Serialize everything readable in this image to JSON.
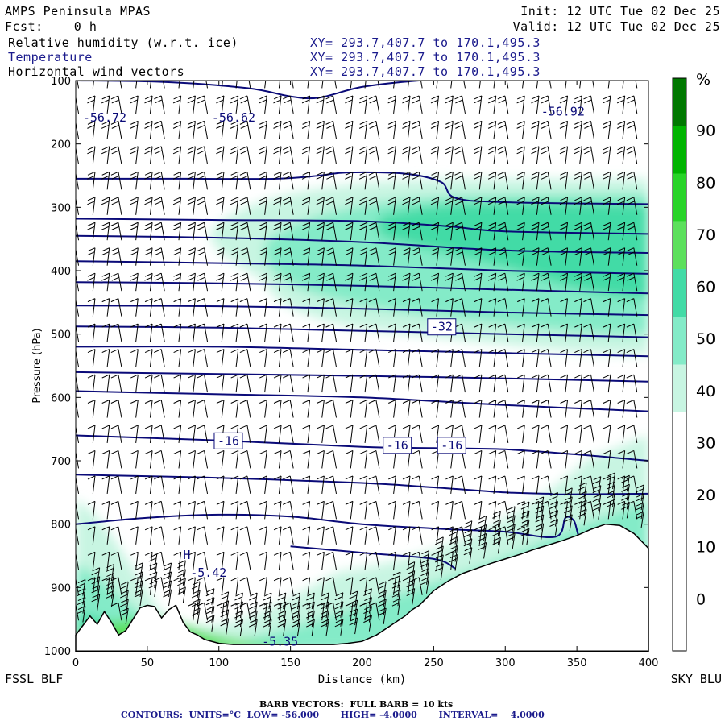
{
  "header": {
    "model": "AMPS Peninsula MPAS",
    "forecast": "Fcst:    0 h",
    "init": "Init: 12 UTC Tue 02 Dec 25",
    "valid": "Valid: 12 UTC Tue 02 Dec 25",
    "fields": [
      {
        "name": "Relative humidity (w.r.t. ice)",
        "xy": "XY= 293.7,407.7 to 170.1,495.3"
      },
      {
        "name": "Temperature",
        "xy": "XY= 293.7,407.7 to 170.1,495.3"
      },
      {
        "name": "Horizontal wind vectors",
        "xy": "XY= 293.7,407.7 to 170.1,495.3"
      }
    ]
  },
  "footer": {
    "barb_line": "BARB VECTORS:  FULL BARB = 10 kts",
    "contour_line": "CONTOURS:  UNITS=°C  LOW= -56.000       HIGH= -4.0000       INTERVAL=    4.0000"
  },
  "colors": {
    "contour": "#0a0a78",
    "terrain": "#000000",
    "barb": "#000000",
    "rh_levels": [
      "#ffffff",
      "#ffffff",
      "#ffffff",
      "#ffffff",
      "#ffffff",
      "#c8f5e2",
      "#84ebc8",
      "#42dba6",
      "#5ce05c",
      "#28d428",
      "#00b400",
      "#007800"
    ]
  },
  "chart_data": {
    "type": "cross-section",
    "xlabel": "Distance (km)",
    "ylabel": "Pressure (hPa)",
    "x_ticks": [
      0,
      50,
      100,
      150,
      200,
      250,
      300,
      350,
      400
    ],
    "y_ticks": [
      100,
      200,
      300,
      400,
      500,
      600,
      700,
      800,
      900,
      1000
    ],
    "xlim": [
      0,
      400
    ],
    "ylim": [
      1000,
      100
    ],
    "left_end_label": "FSSL_BLF",
    "right_end_label": "SKY_BLU",
    "colorbar": {
      "unit": "%",
      "tick_labels": [
        "90",
        "80",
        "70",
        "60",
        "50",
        "40",
        "30",
        "20",
        "10",
        "0"
      ],
      "tick_values": [
        90,
        80,
        70,
        60,
        50,
        40,
        30,
        20,
        10,
        0
      ],
      "top": 100,
      "bottom": -10
    },
    "contour_labels": [
      {
        "text": "-56.72",
        "x": 5,
        "p": 165,
        "boxed": false
      },
      {
        "text": "-56.62",
        "x": 95,
        "p": 165,
        "boxed": false
      },
      {
        "text": "-56.92",
        "x": 325,
        "p": 155,
        "boxed": false
      },
      {
        "text": "-32",
        "x": 248,
        "p": 495,
        "boxed": true
      },
      {
        "text": "-16",
        "x": 99,
        "p": 675,
        "boxed": true
      },
      {
        "text": "-16",
        "x": 217,
        "p": 682,
        "boxed": true
      },
      {
        "text": "-16",
        "x": 255,
        "p": 682,
        "boxed": true
      },
      {
        "text": "-5.42",
        "x": 80,
        "p": 883,
        "boxed": false
      },
      {
        "text": "H",
        "x": 75,
        "p": 855,
        "boxed": false
      },
      {
        "text": "-5.35",
        "x": 130,
        "p": 992,
        "boxed": false
      }
    ],
    "terrain": {
      "x": [
        0,
        5,
        10,
        15,
        20,
        25,
        30,
        35,
        40,
        45,
        50,
        55,
        60,
        65,
        70,
        75,
        80,
        85,
        90,
        100,
        110,
        120,
        130,
        140,
        150,
        160,
        170,
        180,
        190,
        200,
        210,
        220,
        230,
        235,
        240,
        250,
        260,
        270,
        280,
        290,
        300,
        310,
        320,
        330,
        340,
        350,
        360,
        370,
        380,
        390,
        400
      ],
      "p": [
        975,
        960,
        945,
        958,
        938,
        955,
        975,
        968,
        950,
        932,
        928,
        930,
        948,
        935,
        928,
        955,
        970,
        975,
        982,
        988,
        990,
        990,
        990,
        990,
        990,
        990,
        990,
        990,
        988,
        985,
        975,
        960,
        945,
        935,
        928,
        905,
        890,
        878,
        870,
        862,
        855,
        848,
        840,
        833,
        826,
        818,
        808,
        800,
        802,
        815,
        838
      ]
    },
    "temperature_contours": [
      {
        "x": [
          0,
          60,
          120,
          150,
          170,
          200,
          240,
          270,
          300,
          400
        ],
        "p": [
          100,
          102,
          112,
          125,
          127,
          110,
          100,
          98,
          96,
          95
        ]
      },
      {
        "x": [
          0,
          80,
          140,
          170,
          190,
          230,
          255,
          265,
          300,
          400
        ],
        "p": [
          255,
          255,
          255,
          250,
          245,
          247,
          260,
          285,
          292,
          295
        ]
      },
      {
        "x": [
          0,
          100,
          200,
          260,
          300,
          400
        ],
        "p": [
          318,
          320,
          322,
          330,
          338,
          342
        ]
      },
      {
        "x": [
          0,
          100,
          200,
          300,
          400
        ],
        "p": [
          345,
          348,
          355,
          368,
          372
        ]
      },
      {
        "x": [
          0,
          100,
          200,
          300,
          400
        ],
        "p": [
          385,
          388,
          392,
          400,
          405
        ]
      },
      {
        "x": [
          0,
          100,
          200,
          300,
          400
        ],
        "p": [
          418,
          420,
          424,
          430,
          436
        ]
      },
      {
        "x": [
          0,
          100,
          200,
          300,
          400
        ],
        "p": [
          455,
          456,
          460,
          466,
          470
        ]
      },
      {
        "x": [
          0,
          100,
          200,
          300,
          400
        ],
        "p": [
          488,
          490,
          495,
          500,
          505
        ]
      },
      {
        "x": [
          0,
          100,
          200,
          300,
          400
        ],
        "p": [
          520,
          520,
          525,
          530,
          535
        ]
      },
      {
        "x": [
          0,
          100,
          200,
          300,
          400
        ],
        "p": [
          560,
          563,
          566,
          570,
          575
        ]
      },
      {
        "x": [
          0,
          100,
          200,
          300,
          400
        ],
        "p": [
          590,
          595,
          600,
          612,
          622
        ]
      },
      {
        "x": [
          0,
          100,
          200,
          250,
          300,
          350,
          400
        ],
        "p": [
          660,
          668,
          678,
          680,
          682,
          690,
          700
        ]
      },
      {
        "x": [
          0,
          100,
          200,
          250,
          300,
          330,
          340,
          400
        ],
        "p": [
          722,
          727,
          735,
          742,
          750,
          752,
          753,
          752
        ]
      },
      {
        "x": [
          0,
          50,
          100,
          150,
          200,
          260,
          300,
          335,
          342,
          348,
          352,
          360
        ],
        "p": [
          800,
          790,
          785,
          788,
          800,
          808,
          812,
          820,
          790,
          795,
          820,
          815
        ]
      },
      {
        "x": [
          150,
          200,
          250,
          265
        ],
        "p": [
          835,
          845,
          855,
          870
        ]
      }
    ]
  }
}
